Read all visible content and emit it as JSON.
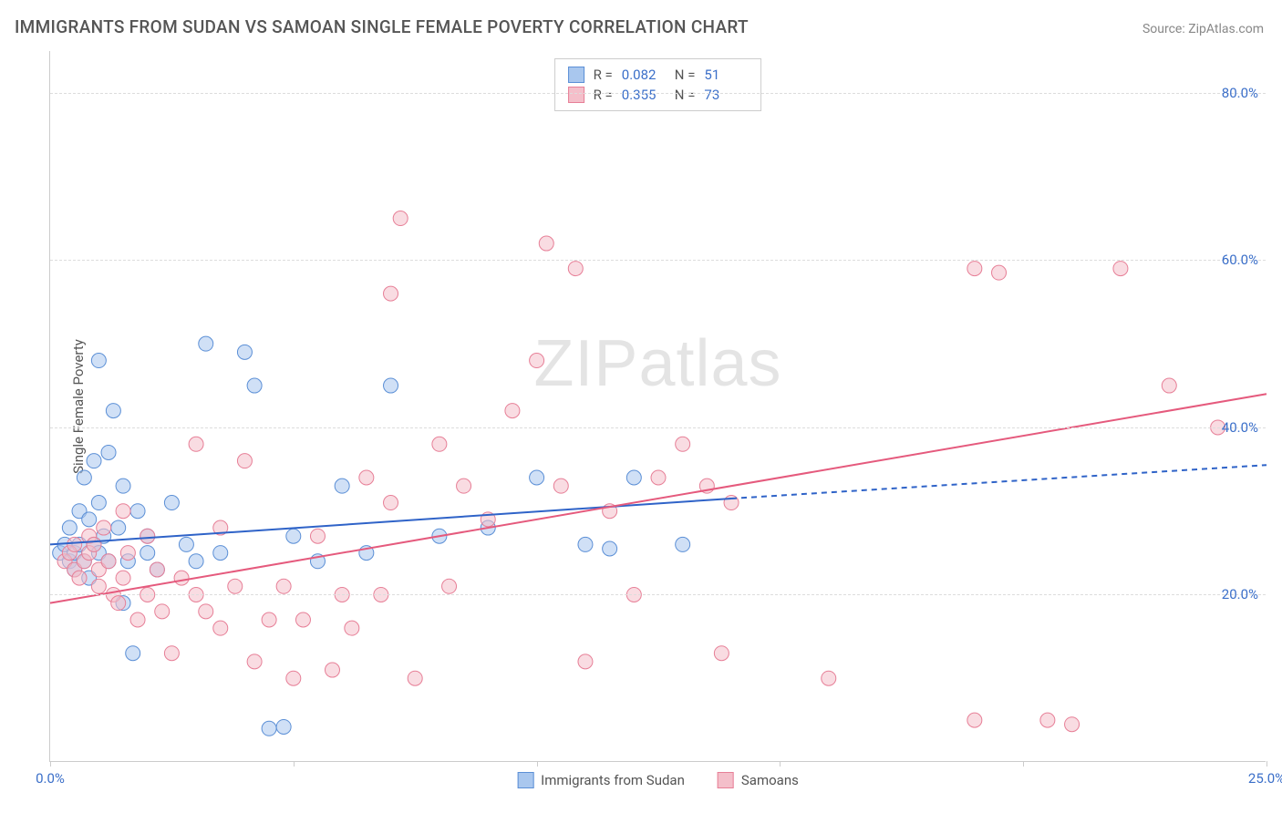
{
  "title": "IMMIGRANTS FROM SUDAN VS SAMOAN SINGLE FEMALE POVERTY CORRELATION CHART",
  "source": "Source: ZipAtlas.com",
  "watermark": "ZIPatlas",
  "chart": {
    "type": "scatter",
    "ylabel": "Single Female Poverty",
    "xlim": [
      0,
      25
    ],
    "ylim": [
      0,
      85
    ],
    "x_ticks": [
      0,
      5,
      10,
      15,
      20,
      25
    ],
    "x_tick_labels": [
      "0.0%",
      "",
      "",
      "",
      "",
      "25.0%"
    ],
    "y_gridlines": [
      20,
      40,
      60,
      80
    ],
    "y_tick_labels": [
      "20.0%",
      "40.0%",
      "60.0%",
      "80.0%"
    ],
    "grid_color": "#dddddd",
    "axis_color": "#cccccc",
    "tick_label_color": "#3b6fc9",
    "background_color": "#ffffff",
    "marker_radius": 8,
    "marker_opacity": 0.55,
    "series": [
      {
        "name": "Immigrants from Sudan",
        "color_fill": "#a9c7ee",
        "color_stroke": "#5b8fd6",
        "R": "0.082",
        "N": "51",
        "trend": {
          "x0": 0,
          "y0": 26,
          "x_solid_end": 14,
          "y_solid_end": 31.5,
          "x1": 25,
          "y1": 35.5,
          "color": "#2f63c8",
          "width": 2
        },
        "points": [
          [
            0.2,
            25
          ],
          [
            0.3,
            26
          ],
          [
            0.4,
            24
          ],
          [
            0.4,
            28
          ],
          [
            0.5,
            25
          ],
          [
            0.5,
            23
          ],
          [
            0.6,
            26
          ],
          [
            0.6,
            30
          ],
          [
            0.7,
            34
          ],
          [
            0.7,
            24
          ],
          [
            0.8,
            22
          ],
          [
            0.8,
            29
          ],
          [
            0.9,
            36
          ],
          [
            0.9,
            26
          ],
          [
            1.0,
            25
          ],
          [
            1.0,
            31
          ],
          [
            1.0,
            48
          ],
          [
            1.1,
            27
          ],
          [
            1.2,
            37
          ],
          [
            1.2,
            24
          ],
          [
            1.3,
            42
          ],
          [
            1.4,
            28
          ],
          [
            1.5,
            19
          ],
          [
            1.5,
            33
          ],
          [
            1.6,
            24
          ],
          [
            1.7,
            13
          ],
          [
            1.8,
            30
          ],
          [
            2.0,
            27
          ],
          [
            2.0,
            25
          ],
          [
            2.2,
            23
          ],
          [
            2.5,
            31
          ],
          [
            2.8,
            26
          ],
          [
            3.0,
            24
          ],
          [
            3.2,
            50
          ],
          [
            3.5,
            25
          ],
          [
            4.0,
            49
          ],
          [
            4.2,
            45
          ],
          [
            4.5,
            4
          ],
          [
            4.8,
            4.2
          ],
          [
            5.0,
            27
          ],
          [
            5.5,
            24
          ],
          [
            6.0,
            33
          ],
          [
            6.5,
            25
          ],
          [
            7.0,
            45
          ],
          [
            8.0,
            27
          ],
          [
            9.0,
            28
          ],
          [
            10.0,
            34
          ],
          [
            11.0,
            26
          ],
          [
            11.5,
            25.5
          ],
          [
            12.0,
            34
          ],
          [
            13.0,
            26
          ]
        ]
      },
      {
        "name": "Samoans",
        "color_fill": "#f4bfca",
        "color_stroke": "#e77f97",
        "R": "0.355",
        "N": "73",
        "trend": {
          "x0": 0,
          "y0": 19,
          "x_solid_end": 25,
          "y_solid_end": 44,
          "x1": 25,
          "y1": 44,
          "color": "#e55a7d",
          "width": 2
        },
        "points": [
          [
            0.3,
            24
          ],
          [
            0.4,
            25
          ],
          [
            0.5,
            23
          ],
          [
            0.5,
            26
          ],
          [
            0.6,
            22
          ],
          [
            0.7,
            24
          ],
          [
            0.8,
            25
          ],
          [
            0.8,
            27
          ],
          [
            0.9,
            26
          ],
          [
            1.0,
            23
          ],
          [
            1.0,
            21
          ],
          [
            1.1,
            28
          ],
          [
            1.2,
            24
          ],
          [
            1.3,
            20
          ],
          [
            1.4,
            19
          ],
          [
            1.5,
            30
          ],
          [
            1.5,
            22
          ],
          [
            1.6,
            25
          ],
          [
            1.8,
            17
          ],
          [
            2.0,
            27
          ],
          [
            2.0,
            20
          ],
          [
            2.2,
            23
          ],
          [
            2.3,
            18
          ],
          [
            2.5,
            13
          ],
          [
            2.7,
            22
          ],
          [
            3.0,
            38
          ],
          [
            3.0,
            20
          ],
          [
            3.2,
            18
          ],
          [
            3.5,
            28
          ],
          [
            3.5,
            16
          ],
          [
            3.8,
            21
          ],
          [
            4.0,
            36
          ],
          [
            4.2,
            12
          ],
          [
            4.5,
            17
          ],
          [
            4.8,
            21
          ],
          [
            5.0,
            10
          ],
          [
            5.2,
            17
          ],
          [
            5.5,
            27
          ],
          [
            5.8,
            11
          ],
          [
            6.0,
            20
          ],
          [
            6.2,
            16
          ],
          [
            6.5,
            34
          ],
          [
            6.8,
            20
          ],
          [
            7.0,
            31
          ],
          [
            7.0,
            56
          ],
          [
            7.2,
            65
          ],
          [
            7.5,
            10
          ],
          [
            8.0,
            38
          ],
          [
            8.2,
            21
          ],
          [
            8.5,
            33
          ],
          [
            9.0,
            29
          ],
          [
            9.5,
            42
          ],
          [
            10.0,
            48
          ],
          [
            10.2,
            62
          ],
          [
            10.5,
            33
          ],
          [
            10.8,
            59
          ],
          [
            11.0,
            12
          ],
          [
            11.5,
            30
          ],
          [
            12.0,
            20
          ],
          [
            12.5,
            34
          ],
          [
            13.0,
            38
          ],
          [
            13.5,
            33
          ],
          [
            13.8,
            13
          ],
          [
            14.0,
            31
          ],
          [
            16.0,
            10
          ],
          [
            19.0,
            59
          ],
          [
            19.5,
            58.5
          ],
          [
            19.0,
            5
          ],
          [
            20.5,
            5
          ],
          [
            21.0,
            4.5
          ],
          [
            22.0,
            59
          ],
          [
            23.0,
            45
          ],
          [
            24.0,
            40
          ]
        ]
      }
    ],
    "bottom_legend": [
      {
        "label": "Immigrants from Sudan",
        "fill": "#a9c7ee",
        "stroke": "#5b8fd6"
      },
      {
        "label": "Samoans",
        "fill": "#f4bfca",
        "stroke": "#e77f97"
      }
    ]
  }
}
